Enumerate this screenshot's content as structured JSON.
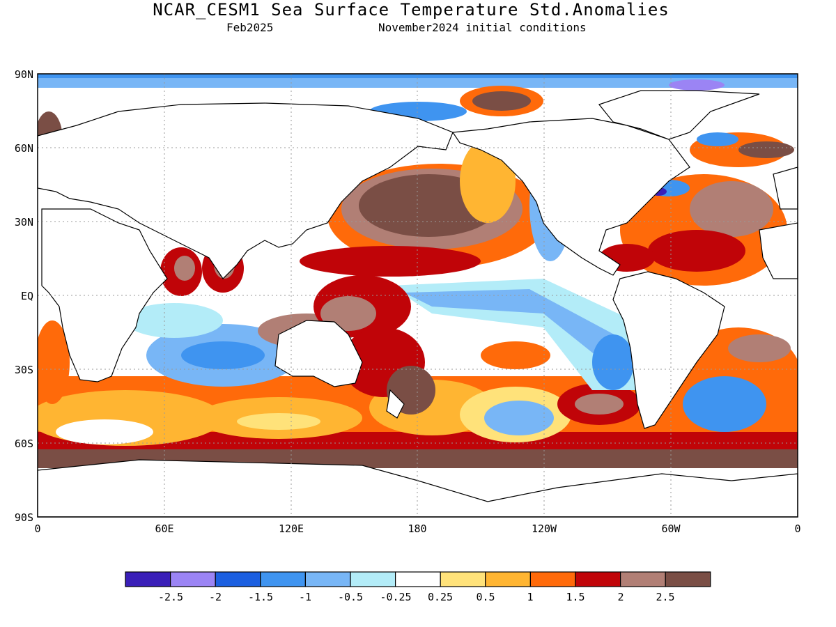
{
  "title": "NCAR_CESM1 Sea Surface Temperature Std.Anomalies",
  "subtitle_left": "Feb2025",
  "subtitle_right": "November2024 initial conditions",
  "lat_labels": [
    "90N",
    "60N",
    "30N",
    "EQ",
    "30S",
    "60S",
    "90S"
  ],
  "lon_labels": [
    "0",
    "60E",
    "120E",
    "180",
    "120W",
    "60W",
    "0"
  ],
  "colorbar": {
    "colors": [
      "#3a1fb8",
      "#9b84f4",
      "#1c5fe0",
      "#3f94f0",
      "#78b6f6",
      "#b3ecf8",
      "#ffffff",
      "#ffe27a",
      "#ffb532",
      "#ff6a0a",
      "#c00408",
      "#b17f75",
      "#7a4e45"
    ],
    "labels": [
      "-2.5",
      "-2",
      "-1.5",
      "-1",
      "-0.5",
      "-0.25",
      "0.25",
      "0.5",
      "1",
      "1.5",
      "2",
      "2.5"
    ]
  }
}
